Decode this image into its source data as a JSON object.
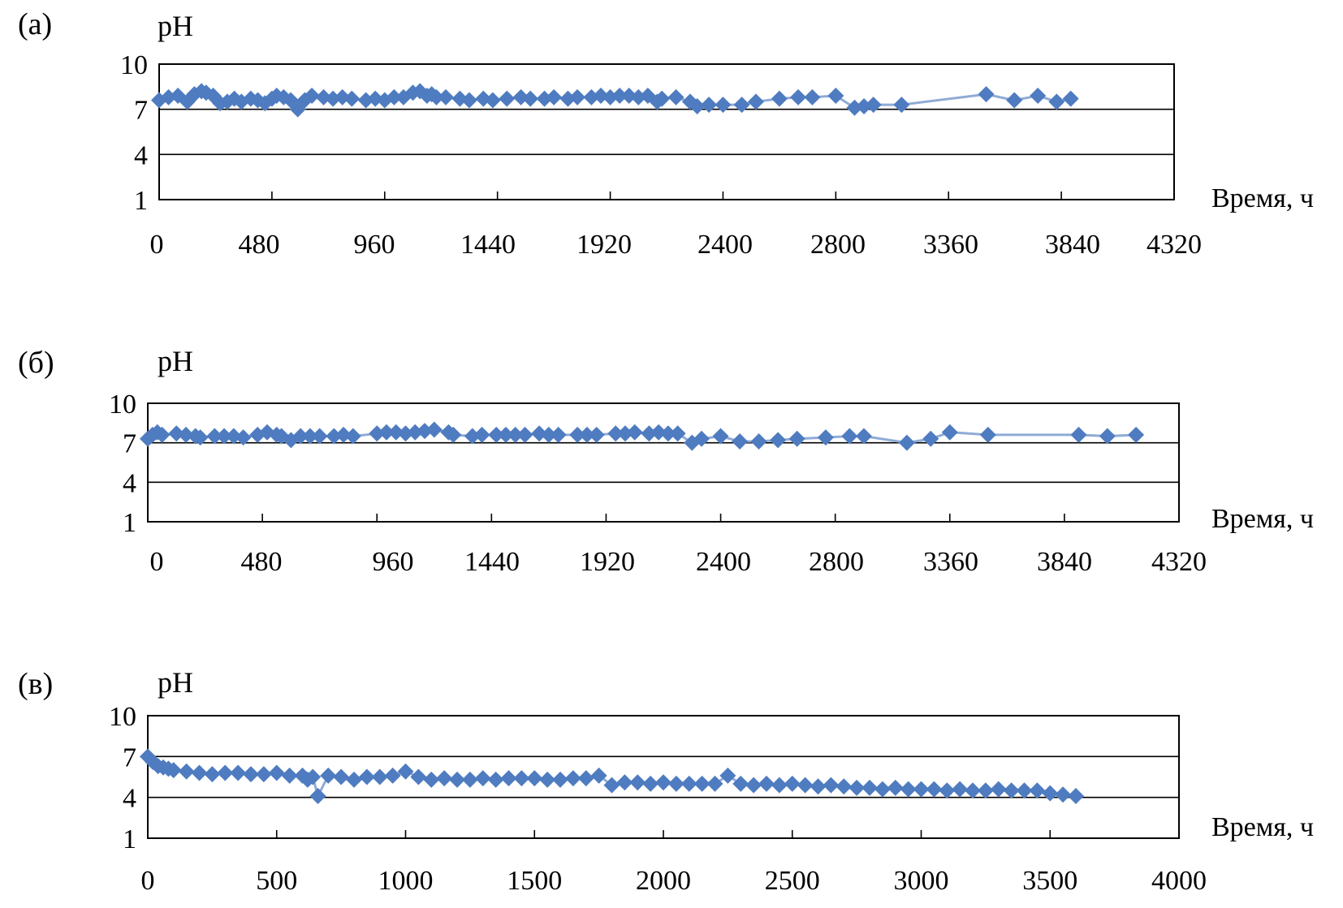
{
  "colors": {
    "series": "#4f7cc0",
    "series_line": "#8fabd6",
    "axis": "#000000"
  },
  "chart_data": [
    {
      "type": "line",
      "panel_label": "(а)",
      "ylabel": "pH",
      "xlabel": "Время, ч",
      "ylim": [
        1,
        10
      ],
      "yticks": [
        1,
        4,
        7,
        10
      ],
      "xticks": [
        "0",
        "480",
        "960",
        "1440",
        "1920",
        "2400",
        "2800",
        "3360",
        "3840",
        "4320"
      ],
      "xlim": [
        0,
        4320
      ],
      "grid": "horizontal lines at y=4 and y=7",
      "legend": "none",
      "x": [
        0,
        40,
        80,
        120,
        150,
        180,
        200,
        230,
        260,
        290,
        320,
        350,
        390,
        420,
        450,
        480,
        500,
        530,
        560,
        590,
        620,
        650,
        700,
        740,
        780,
        820,
        880,
        920,
        960,
        1000,
        1040,
        1080,
        1110,
        1140,
        1160,
        1180,
        1220,
        1280,
        1320,
        1380,
        1420,
        1480,
        1540,
        1580,
        1640,
        1680,
        1740,
        1780,
        1840,
        1880,
        1920,
        1960,
        2000,
        2040,
        2080,
        2120,
        2140,
        2200,
        2260,
        2290,
        2340,
        2400,
        2480,
        2540,
        2640,
        2720,
        2780,
        2880,
        2960,
        3000,
        3040,
        3160,
        3520,
        3640,
        3740,
        3820,
        3880
      ],
      "y": [
        7.6,
        7.8,
        7.9,
        7.5,
        8.0,
        8.2,
        8.1,
        7.9,
        7.4,
        7.5,
        7.7,
        7.5,
        7.7,
        7.6,
        7.4,
        7.7,
        7.9,
        7.8,
        7.6,
        7.0,
        7.6,
        7.9,
        7.8,
        7.7,
        7.8,
        7.7,
        7.6,
        7.7,
        7.6,
        7.8,
        7.8,
        8.1,
        8.2,
        7.9,
        8.0,
        7.8,
        7.8,
        7.7,
        7.6,
        7.7,
        7.6,
        7.7,
        7.8,
        7.7,
        7.7,
        7.8,
        7.7,
        7.8,
        7.8,
        7.9,
        7.8,
        7.9,
        7.9,
        7.8,
        7.9,
        7.5,
        7.7,
        7.8,
        7.5,
        7.2,
        7.3,
        7.3,
        7.3,
        7.5,
        7.7,
        7.8,
        7.8,
        7.9,
        7.1,
        7.2,
        7.3,
        7.3,
        8.0,
        7.6,
        7.9,
        7.5,
        7.7
      ]
    },
    {
      "type": "line",
      "panel_label": "(б)",
      "ylabel": "pH",
      "xlabel": "Время, ч",
      "ylim": [
        1,
        10
      ],
      "yticks": [
        1,
        4,
        7,
        10
      ],
      "xticks": [
        "0",
        "480",
        "960",
        "1440",
        "1920",
        "2400",
        "2800",
        "3360",
        "3840",
        "4320"
      ],
      "xlim": [
        0,
        4320
      ],
      "grid": "horizontal lines at y=4 and y=7",
      "legend": "none",
      "x": [
        0,
        20,
        40,
        60,
        120,
        160,
        200,
        220,
        280,
        320,
        360,
        400,
        460,
        500,
        540,
        560,
        600,
        640,
        680,
        720,
        780,
        820,
        860,
        960,
        1000,
        1040,
        1080,
        1120,
        1160,
        1200,
        1260,
        1280,
        1360,
        1400,
        1460,
        1500,
        1540,
        1580,
        1640,
        1680,
        1720,
        1800,
        1840,
        1880,
        1960,
        2000,
        2040,
        2100,
        2140,
        2180,
        2220,
        2280,
        2320,
        2400,
        2480,
        2560,
        2640,
        2720,
        2840,
        2940,
        3000,
        3180,
        3280,
        3360,
        3520,
        3900,
        4020,
        4140
      ],
      "y": [
        7.3,
        7.6,
        7.8,
        7.6,
        7.7,
        7.6,
        7.5,
        7.4,
        7.5,
        7.5,
        7.5,
        7.4,
        7.6,
        7.8,
        7.6,
        7.5,
        7.2,
        7.5,
        7.5,
        7.5,
        7.5,
        7.6,
        7.5,
        7.7,
        7.8,
        7.8,
        7.7,
        7.8,
        7.9,
        8.0,
        7.8,
        7.6,
        7.5,
        7.6,
        7.6,
        7.6,
        7.6,
        7.6,
        7.7,
        7.6,
        7.6,
        7.6,
        7.6,
        7.6,
        7.7,
        7.7,
        7.8,
        7.7,
        7.8,
        7.7,
        7.7,
        7.0,
        7.3,
        7.5,
        7.1,
        7.1,
        7.2,
        7.3,
        7.4,
        7.5,
        7.5,
        7.0,
        7.3,
        7.8,
        7.6,
        7.6,
        7.5,
        7.6
      ]
    },
    {
      "type": "line",
      "panel_label": "(в)",
      "ylabel": "pH",
      "xlabel": "Время, ч",
      "ylim": [
        1,
        10
      ],
      "yticks": [
        1,
        4,
        7,
        10
      ],
      "xticks": [
        "0",
        "500",
        "1000",
        "1500",
        "2000",
        "2500",
        "3000",
        "3500",
        "4000"
      ],
      "xlim": [
        0,
        4000
      ],
      "grid": "horizontal lines at y=4 and y=7",
      "legend": "none",
      "x": [
        0,
        20,
        40,
        60,
        80,
        100,
        150,
        200,
        250,
        300,
        350,
        400,
        450,
        500,
        550,
        600,
        620,
        640,
        660,
        700,
        750,
        800,
        850,
        900,
        950,
        1000,
        1050,
        1100,
        1150,
        1200,
        1250,
        1300,
        1350,
        1400,
        1450,
        1500,
        1550,
        1600,
        1650,
        1700,
        1750,
        1800,
        1850,
        1900,
        1950,
        2000,
        2050,
        2100,
        2150,
        2200,
        2250,
        2300,
        2350,
        2400,
        2450,
        2500,
        2550,
        2600,
        2650,
        2700,
        2750,
        2800,
        2850,
        2900,
        2950,
        3000,
        3050,
        3100,
        3150,
        3200,
        3250,
        3300,
        3350,
        3400,
        3450,
        3500,
        3550,
        3600
      ],
      "y": [
        7.0,
        6.6,
        6.3,
        6.2,
        6.1,
        6.0,
        5.9,
        5.8,
        5.7,
        5.8,
        5.8,
        5.7,
        5.7,
        5.8,
        5.6,
        5.6,
        5.3,
        5.5,
        4.1,
        5.6,
        5.5,
        5.3,
        5.5,
        5.5,
        5.6,
        5.9,
        5.5,
        5.3,
        5.4,
        5.3,
        5.3,
        5.4,
        5.3,
        5.4,
        5.4,
        5.4,
        5.3,
        5.3,
        5.4,
        5.4,
        5.6,
        4.9,
        5.1,
        5.1,
        5.0,
        5.1,
        5.0,
        5.0,
        5.0,
        5.0,
        5.6,
        5.0,
        4.9,
        5.0,
        4.9,
        5.0,
        4.9,
        4.8,
        4.9,
        4.8,
        4.7,
        4.7,
        4.6,
        4.7,
        4.6,
        4.6,
        4.6,
        4.5,
        4.6,
        4.5,
        4.5,
        4.6,
        4.5,
        4.5,
        4.5,
        4.3,
        4.2,
        4.1
      ]
    }
  ]
}
